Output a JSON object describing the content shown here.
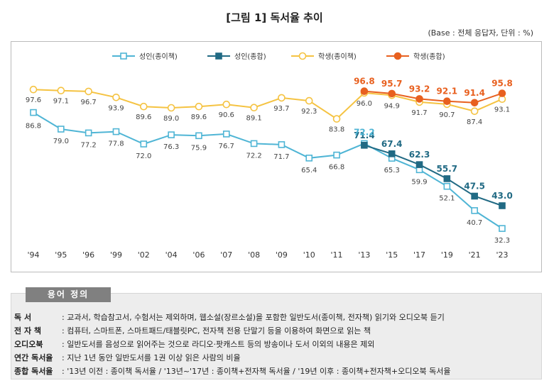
{
  "header": {
    "title": "[그림 1] 독서율 추이",
    "base_note": "(Base : 전체 응답자, 단위 : %)"
  },
  "chart_data": {
    "type": "line",
    "title": "[그림 1] 독서율 추이",
    "unit": "%",
    "categories": [
      "'94",
      "'95",
      "'96",
      "'99",
      "'02",
      "'04",
      "'06",
      "'07",
      "'08",
      "'09",
      "'10",
      "'11",
      "'13",
      "'15",
      "'17",
      "'19",
      "'21",
      "'23"
    ],
    "ylim": [
      20,
      110
    ],
    "grid": false,
    "legend_position": "top",
    "series": [
      {
        "name": "성인(종이책)",
        "color": "#4fb5d5",
        "marker": "square-open",
        "values": [
          86.8,
          79.0,
          77.2,
          77.8,
          72.0,
          76.3,
          75.9,
          76.7,
          72.2,
          71.7,
          65.4,
          66.8,
          72.2,
          65.3,
          59.9,
          52.1,
          40.7,
          32.3
        ],
        "labels": [
          "86.8",
          "79.0",
          "77.2",
          "77.8",
          "72.0",
          "76.3",
          "75.9",
          "76.7",
          "72.2",
          "71.7",
          "65.4",
          "66.8",
          "",
          "65.3",
          "59.9",
          "52.1",
          "40.7",
          "32.3"
        ]
      },
      {
        "name": "성인(종합)",
        "color": "#216a84",
        "marker": "square",
        "values": [
          null,
          null,
          null,
          null,
          null,
          null,
          null,
          null,
          null,
          null,
          null,
          null,
          71.4,
          67.4,
          62.3,
          55.7,
          47.5,
          43.0
        ],
        "labels": [
          "",
          "",
          "",
          "",
          "",
          "",
          "",
          "",
          "",
          "",
          "",
          "",
          "71.4",
          "67.4",
          "62.3",
          "55.7",
          "47.5",
          "43.0"
        ]
      },
      {
        "name": "학생(종이책)",
        "color": "#f5c342",
        "marker": "circle-open",
        "values": [
          97.6,
          97.1,
          96.7,
          93.9,
          89.6,
          89.0,
          89.6,
          90.6,
          89.1,
          93.7,
          92.3,
          83.8,
          96.0,
          94.9,
          91.7,
          90.7,
          87.4,
          93.1
        ],
        "labels": [
          "97.6",
          "97.1",
          "96.7",
          "93.9",
          "89.6",
          "89.0",
          "89.6",
          "90.6",
          "89.1",
          "93.7",
          "92.3",
          "83.8",
          "96.0",
          "94.9",
          "91.7",
          "90.7",
          "87.4",
          "93.1"
        ]
      },
      {
        "name": "학생(종합)",
        "color": "#e8601f",
        "marker": "circle",
        "values": [
          null,
          null,
          null,
          null,
          null,
          null,
          null,
          null,
          null,
          null,
          null,
          null,
          96.8,
          95.7,
          93.2,
          92.1,
          91.4,
          95.8
        ],
        "labels": [
          "",
          "",
          "",
          "",
          "",
          "",
          "",
          "",
          "",
          "",
          "",
          "",
          "96.8",
          "95.7",
          "93.2",
          "92.1",
          "91.4",
          "95.8"
        ]
      }
    ]
  },
  "glossary": {
    "heading": "용어 정의",
    "items": [
      {
        "term": "독 서",
        "desc": ": 교과서, 학습참고서, 수험서는 제외하며, 웹소설(장르소설)을 포함한 일반도서(종이책, 전자책) 읽기와 오디오북 듣기"
      },
      {
        "term": "전 자 책",
        "desc": ": 컴퓨터, 스마트폰, 스마트패드/태블릿PC, 전자책 전용 단말기 등을 이용하여 화면으로 읽는 책"
      },
      {
        "term": "오디오북",
        "desc": ": 일반도서를 음성으로 읽어주는 것으로 라디오·팟캐스트 등의 방송이나 도서 이외의 내용은 제외"
      },
      {
        "term": "연간 독서율",
        "desc": ": 지난 1년 동안 일반도서를 1권 이상 읽은 사람의 비율"
      },
      {
        "term": "종합 독서율",
        "desc": ": '13년 이전 : 종이책 독서율 / '13년~'17년 : 종이책+전자책 독서율 / '19년 이후 : 종이책+전자책+오디오북 독서율"
      }
    ]
  }
}
